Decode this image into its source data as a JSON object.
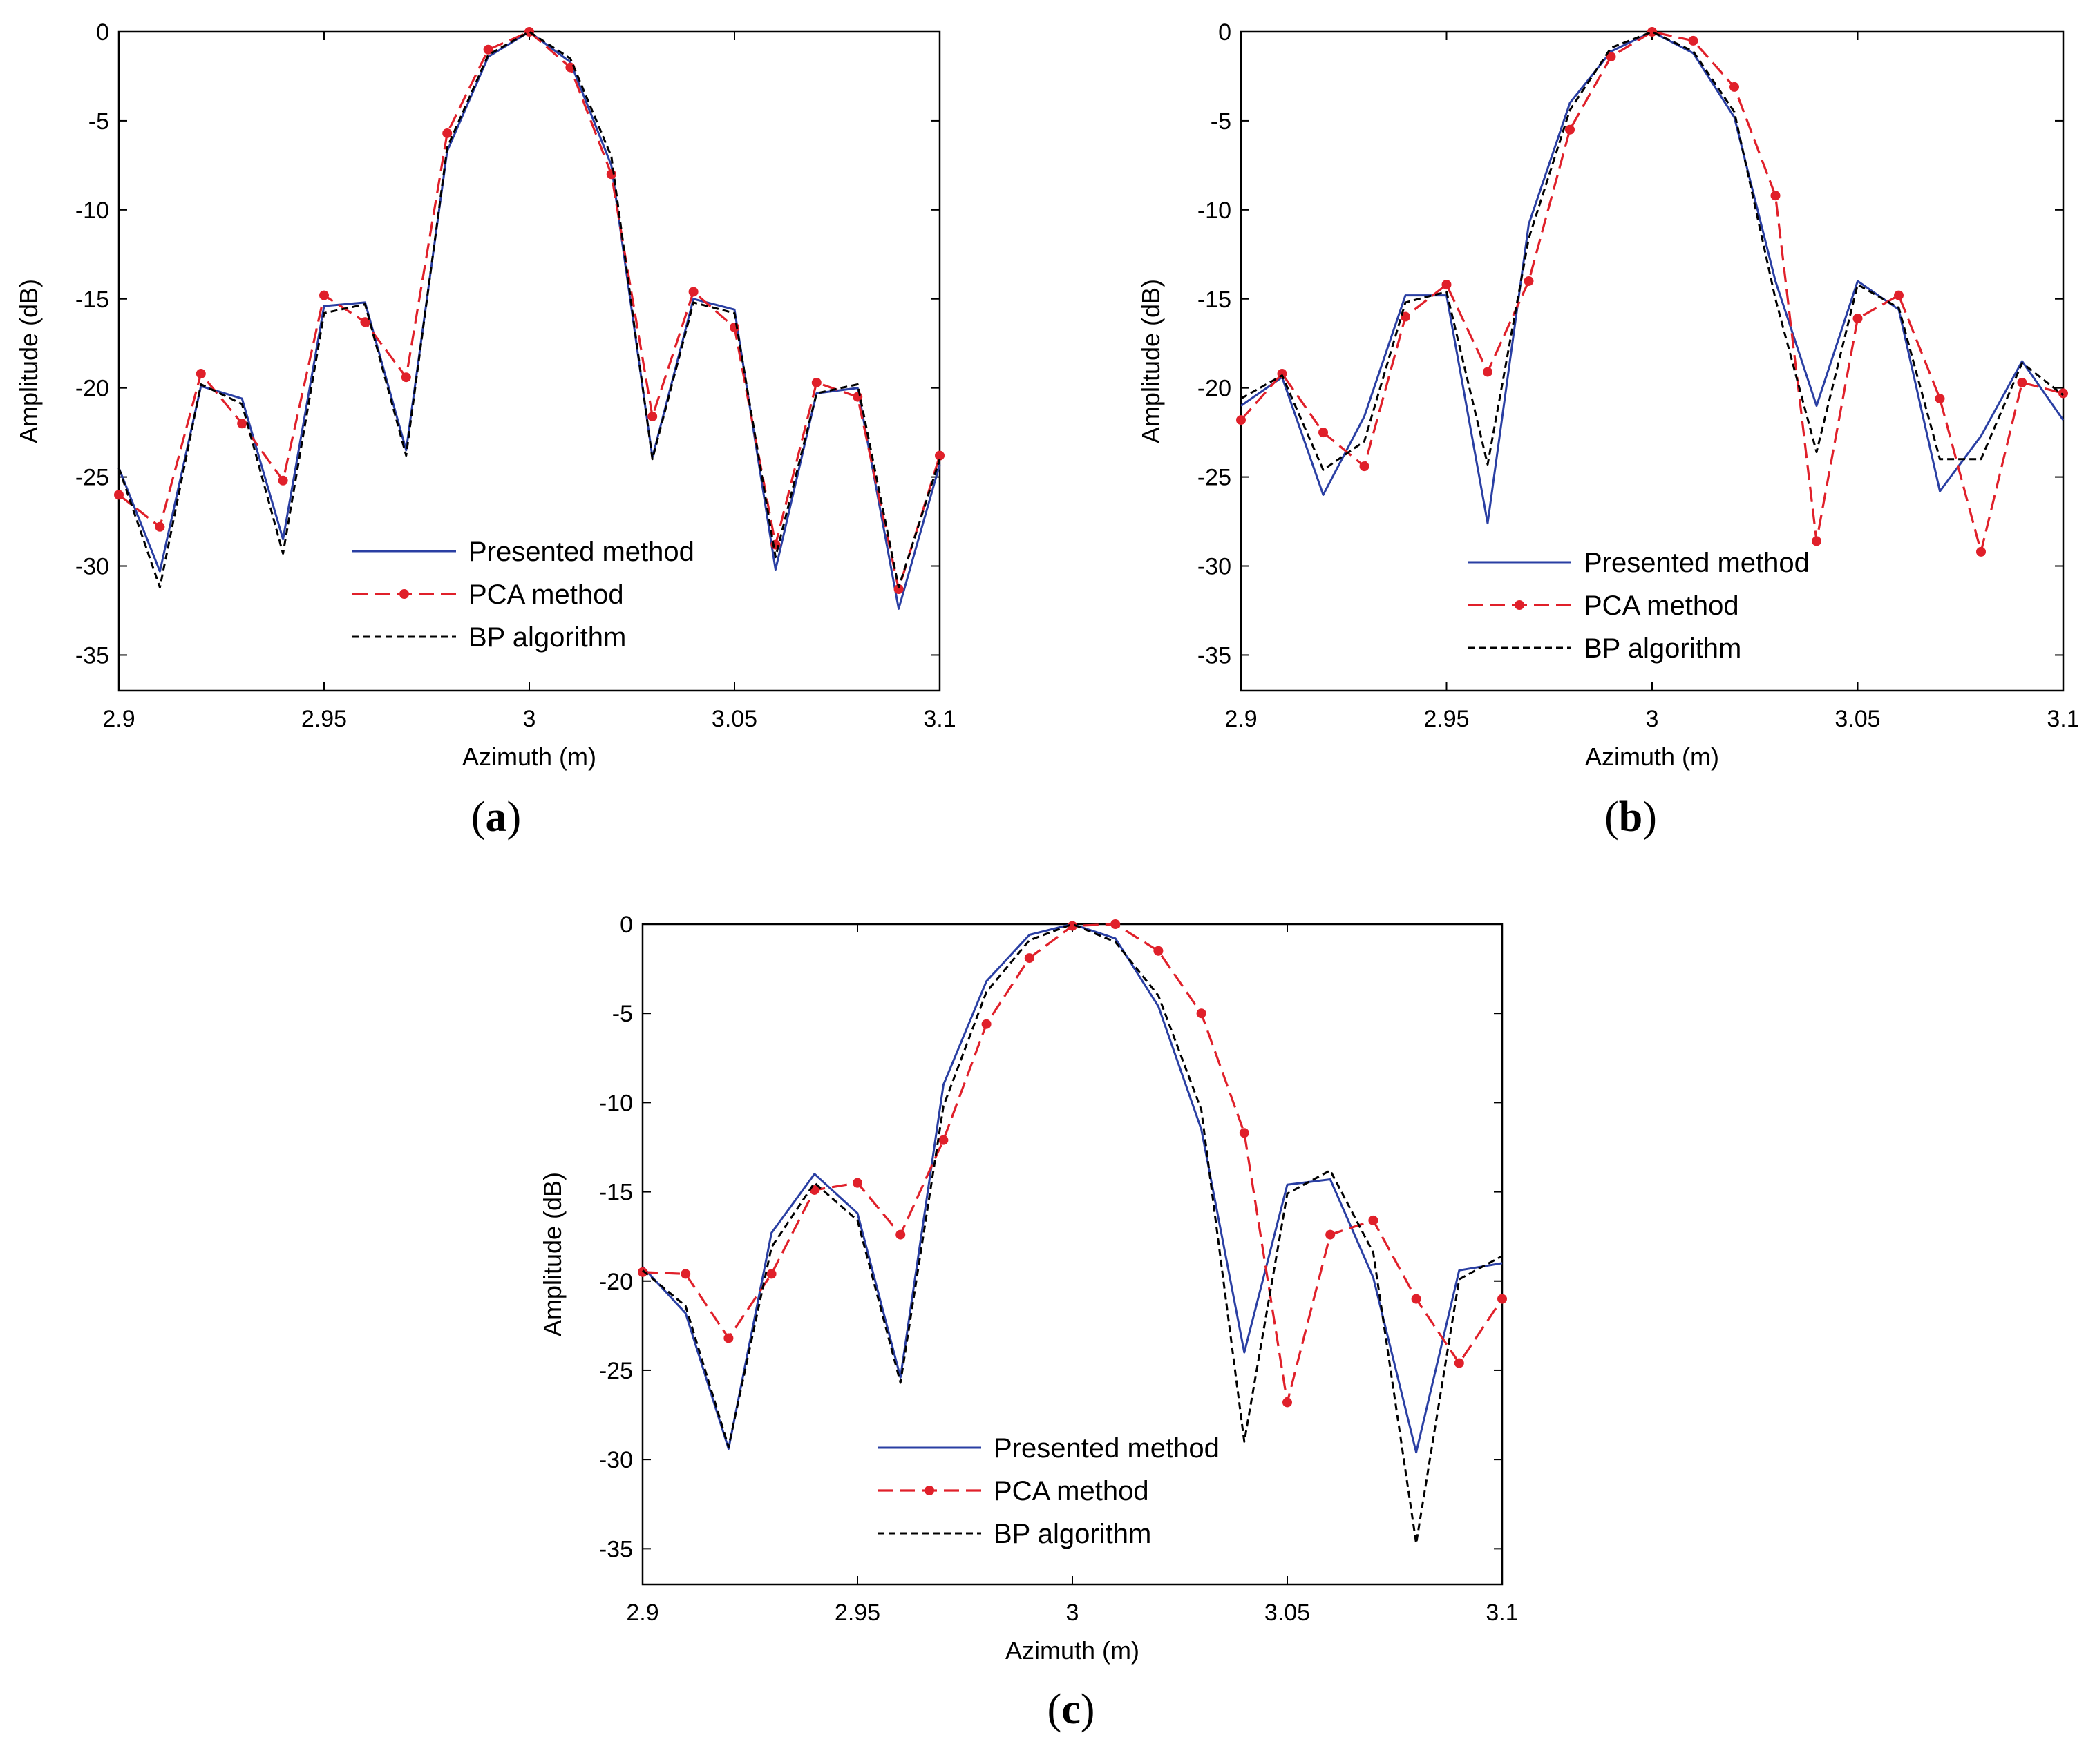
{
  "chart_data": [
    {
      "type": "line",
      "panel_label": "a",
      "xlabel": "Azimuth (m)",
      "ylabel": "Amplitude (dB)",
      "xlim": [
        2.9,
        3.1
      ],
      "ylim": [
        -37,
        0
      ],
      "xticks": [
        "2.9",
        "2.95",
        "3",
        "3.05",
        "3.1"
      ],
      "yticks": [
        "0",
        "-5",
        "-10",
        "-15",
        "-20",
        "-25",
        "-30",
        "-35"
      ],
      "grid": false,
      "legend_position": "bottom-center",
      "x": [
        2.9,
        2.91,
        2.92,
        2.93,
        2.94,
        2.95,
        2.96,
        2.97,
        2.98,
        2.99,
        3.0,
        3.01,
        3.02,
        3.03,
        3.04,
        3.05,
        3.06,
        3.07,
        3.08,
        3.09,
        3.1
      ],
      "series": [
        {
          "name": "Presented method",
          "color": "#2a3fa3",
          "style": "solid",
          "marker": "none",
          "values": [
            -24.5,
            -30.3,
            -19.9,
            -20.6,
            -28.5,
            -15.4,
            -15.2,
            -23.5,
            -6.7,
            -1.4,
            0,
            -1.7,
            -7.5,
            -23.9,
            -15.0,
            -15.6,
            -30.2,
            -20.3,
            -20.0,
            -32.4,
            -24.3
          ]
        },
        {
          "name": "PCA method",
          "color": "#e0202a",
          "style": "dashed",
          "marker": "dot",
          "values": [
            -26.0,
            -27.8,
            -19.2,
            -22.0,
            -25.2,
            -14.8,
            -16.3,
            -19.4,
            -5.7,
            -1.0,
            0,
            -2.0,
            -8.0,
            -21.6,
            -14.6,
            -16.6,
            -28.8,
            -19.7,
            -20.5,
            -31.3,
            -23.8
          ]
        },
        {
          "name": "BP algorithm",
          "color": "#000000",
          "style": "dashed-fine",
          "marker": "none",
          "values": [
            -24.5,
            -31.2,
            -19.8,
            -20.9,
            -29.3,
            -15.8,
            -15.3,
            -23.8,
            -6.5,
            -1.3,
            0,
            -1.5,
            -7.0,
            -24.0,
            -15.2,
            -15.8,
            -29.5,
            -20.3,
            -19.8,
            -31.2,
            -24.0
          ]
        }
      ]
    },
    {
      "type": "line",
      "panel_label": "b",
      "xlabel": "Azimuth (m)",
      "ylabel": "Amplitude (dB)",
      "xlim": [
        2.9,
        3.1
      ],
      "ylim": [
        -37,
        0
      ],
      "xticks": [
        "2.9",
        "2.95",
        "3",
        "3.05",
        "3.1"
      ],
      "yticks": [
        "0",
        "-5",
        "-10",
        "-15",
        "-20",
        "-25",
        "-30",
        "-35"
      ],
      "grid": false,
      "legend_position": "bottom-center",
      "x": [
        2.9,
        2.91,
        2.92,
        2.93,
        2.94,
        2.95,
        2.96,
        2.97,
        2.98,
        2.99,
        3.0,
        3.01,
        3.02,
        3.03,
        3.04,
        3.05,
        3.06,
        3.07,
        3.08,
        3.09,
        3.1
      ],
      "series": [
        {
          "name": "Presented method",
          "color": "#2a3fa3",
          "style": "solid",
          "marker": "none",
          "values": [
            -21.0,
            -19.4,
            -26.0,
            -21.6,
            -14.8,
            -14.8,
            -27.6,
            -10.8,
            -4.0,
            -1.1,
            0,
            -1.2,
            -4.8,
            -14.0,
            -21.0,
            -14.0,
            -15.6,
            -25.8,
            -22.7,
            -18.5,
            -21.8
          ]
        },
        {
          "name": "PCA method",
          "color": "#e0202a",
          "style": "dashed",
          "marker": "dot",
          "values": [
            -21.8,
            -19.2,
            -22.5,
            -24.4,
            -16.0,
            -14.2,
            -19.1,
            -14.0,
            -5.5,
            -1.4,
            0,
            -0.5,
            -3.1,
            -9.2,
            -28.6,
            -16.1,
            -14.8,
            -20.6,
            -29.2,
            -19.7,
            -20.3
          ]
        },
        {
          "name": "BP algorithm",
          "color": "#000000",
          "style": "dashed-fine",
          "marker": "none",
          "values": [
            -20.6,
            -19.3,
            -24.6,
            -23.0,
            -15.2,
            -14.6,
            -24.3,
            -11.6,
            -4.4,
            -0.9,
            0,
            -1.1,
            -4.5,
            -15.0,
            -23.6,
            -14.2,
            -15.5,
            -24.0,
            -24.0,
            -18.6,
            -20.4
          ]
        }
      ]
    },
    {
      "type": "line",
      "panel_label": "c",
      "xlabel": "Azimuth (m)",
      "ylabel": "Amplitude (dB)",
      "xlim": [
        2.9,
        3.1
      ],
      "ylim": [
        -37,
        0
      ],
      "xticks": [
        "2.9",
        "2.95",
        "3",
        "3.05",
        "3.1"
      ],
      "yticks": [
        "0",
        "-5",
        "-10",
        "-15",
        "-20",
        "-25",
        "-30",
        "-35"
      ],
      "grid": false,
      "legend_position": "bottom-left",
      "x": [
        2.9,
        2.91,
        2.92,
        2.93,
        2.94,
        2.95,
        2.96,
        2.97,
        2.98,
        2.99,
        3.0,
        3.01,
        3.02,
        3.03,
        3.04,
        3.05,
        3.06,
        3.07,
        3.08,
        3.09,
        3.1
      ],
      "series": [
        {
          "name": "Presented method",
          "color": "#2a3fa3",
          "style": "solid",
          "marker": "none",
          "values": [
            -19.2,
            -21.8,
            -29.4,
            -17.3,
            -14.0,
            -16.2,
            -25.4,
            -9.0,
            -3.2,
            -0.6,
            0,
            -0.8,
            -4.6,
            -11.5,
            -24.0,
            -14.6,
            -14.3,
            -19.8,
            -29.6,
            -19.4,
            -19.0
          ]
        },
        {
          "name": "PCA method",
          "color": "#e0202a",
          "style": "dashed",
          "marker": "dot",
          "values": [
            -19.5,
            -19.6,
            -23.2,
            -19.6,
            -14.9,
            -14.5,
            -17.4,
            -12.1,
            -5.6,
            -1.9,
            -0.1,
            0,
            -1.5,
            -5.0,
            -11.7,
            -26.8,
            -17.4,
            -16.6,
            -21.0,
            -24.6,
            -21.0
          ]
        },
        {
          "name": "BP algorithm",
          "color": "#000000",
          "style": "dashed-fine",
          "marker": "none",
          "values": [
            -19.4,
            -21.4,
            -29.3,
            -18.1,
            -14.5,
            -16.6,
            -25.7,
            -10.2,
            -3.8,
            -0.9,
            0,
            -1.0,
            -4.0,
            -10.4,
            -29.0,
            -15.1,
            -13.8,
            -18.4,
            -34.7,
            -19.9,
            -18.6
          ]
        }
      ]
    }
  ]
}
